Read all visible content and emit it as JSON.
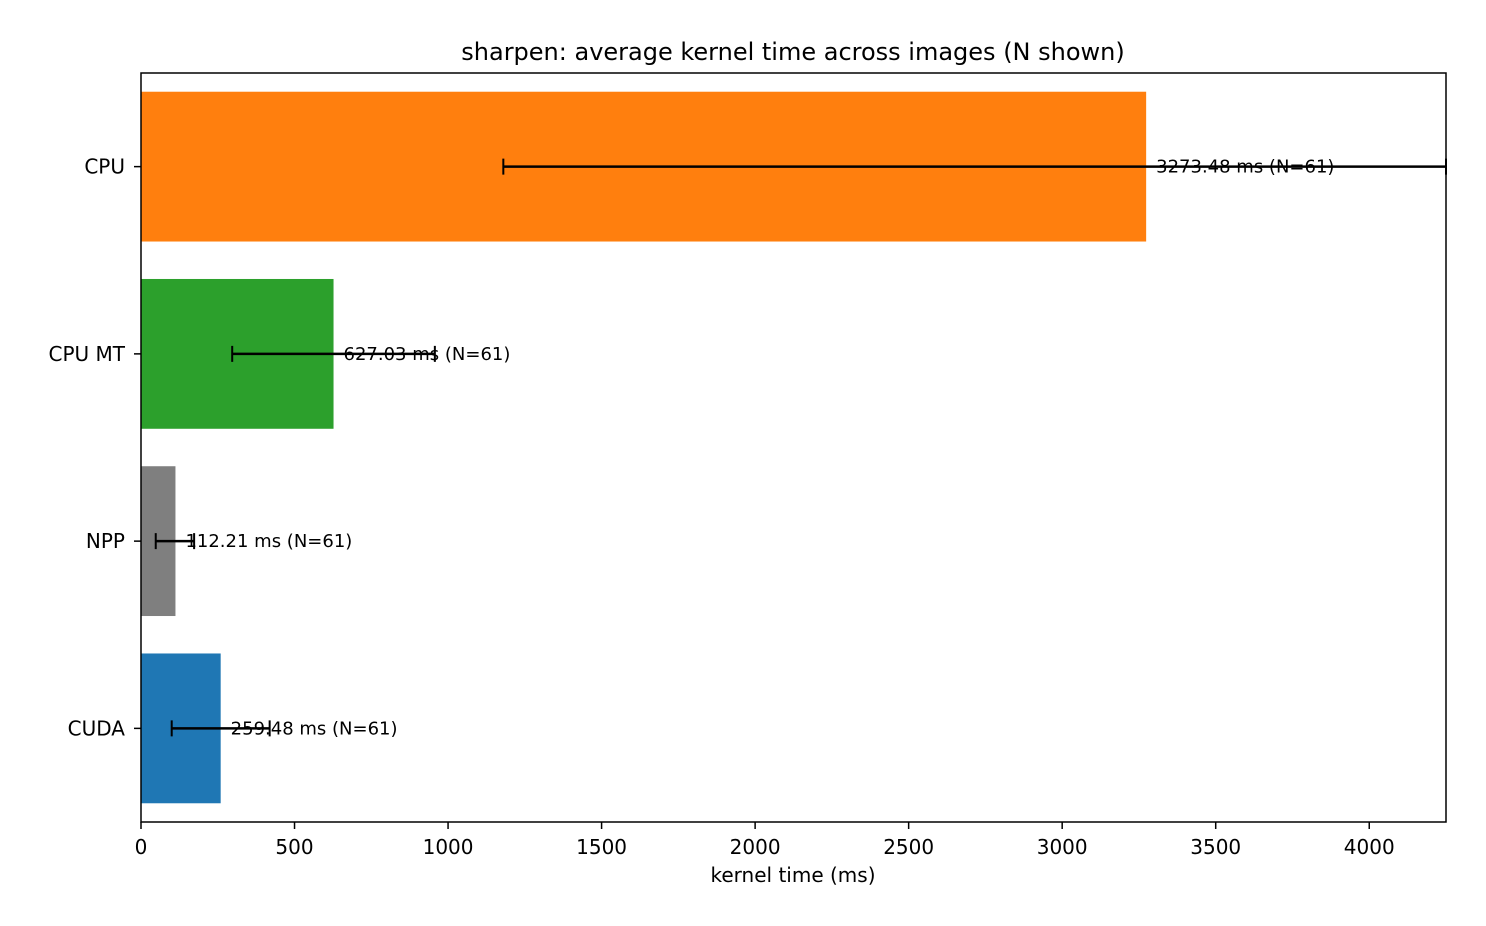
{
  "chart_data": {
    "type": "bar",
    "orientation": "horizontal",
    "title": "sharpen: average kernel time across images (N shown)",
    "xlabel": "kernel time (ms)",
    "ylabel": "",
    "xlim": [
      0,
      4250
    ],
    "xticks": [
      0,
      500,
      1000,
      1500,
      2000,
      2500,
      3000,
      3500,
      4000
    ],
    "xtick_labels": [
      "0",
      "500",
      "1000",
      "1500",
      "2000",
      "2500",
      "3000",
      "3500",
      "4000"
    ],
    "grid": false,
    "bars": [
      {
        "category": "CPU",
        "value": 3273.48,
        "error_low": 1180,
        "error_high": 4250,
        "color": "#ff7f0e",
        "label": "3273.48 ms  (N=61)"
      },
      {
        "category": "CPU MT",
        "value": 627.03,
        "error_low": 297,
        "error_high": 957,
        "color": "#2ca02c",
        "label": "627.03 ms  (N=61)"
      },
      {
        "category": "NPP",
        "value": 112.21,
        "error_low": 48,
        "error_high": 173,
        "color": "#7f7f7f",
        "label": "112.21 ms  (N=61)"
      },
      {
        "category": "CUDA",
        "value": 259.48,
        "error_low": 100,
        "error_high": 419,
        "color": "#1f77b4",
        "label": "259.48 ms  (N=61)"
      }
    ]
  }
}
